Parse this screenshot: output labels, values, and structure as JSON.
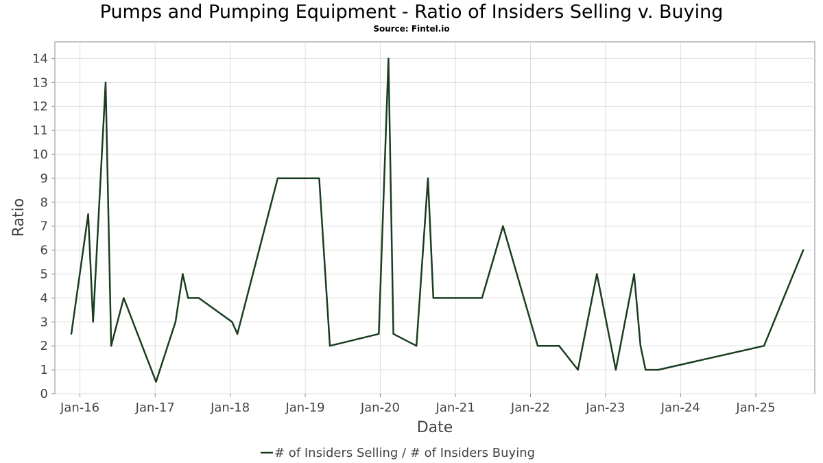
{
  "title": "Pumps and Pumping Equipment - Ratio of Insiders Selling v. Buying",
  "subtitle": "Source: Fintel.io",
  "chart_data": {
    "type": "line",
    "xlabel": "Date",
    "ylabel": "Ratio",
    "xlim": [
      "2015-09-01",
      "2025-10-15"
    ],
    "ylim": [
      0,
      14.7
    ],
    "y_ticks": [
      0,
      1,
      2,
      3,
      4,
      5,
      6,
      7,
      8,
      9,
      10,
      11,
      12,
      13,
      14
    ],
    "x_ticks": [
      {
        "date": "2016-01-01",
        "label": "Jan-16"
      },
      {
        "date": "2017-01-01",
        "label": "Jan-17"
      },
      {
        "date": "2018-01-01",
        "label": "Jan-18"
      },
      {
        "date": "2019-01-01",
        "label": "Jan-19"
      },
      {
        "date": "2020-01-01",
        "label": "Jan-20"
      },
      {
        "date": "2021-01-01",
        "label": "Jan-21"
      },
      {
        "date": "2022-01-01",
        "label": "Jan-22"
      },
      {
        "date": "2023-01-01",
        "label": "Jan-23"
      },
      {
        "date": "2024-01-01",
        "label": "Jan-24"
      },
      {
        "date": "2025-01-01",
        "label": "Jan-25"
      }
    ],
    "grid": true,
    "legend_position": "bottom-center",
    "series": [
      {
        "name": "# of Insiders Selling / # of Insiders Buying",
        "color": "#1a3d1f",
        "points": [
          {
            "x": "2015-11-20",
            "y": 2.5
          },
          {
            "x": "2016-02-10",
            "y": 7.5
          },
          {
            "x": "2016-03-05",
            "y": 3
          },
          {
            "x": "2016-05-05",
            "y": 13
          },
          {
            "x": "2016-06-01",
            "y": 2
          },
          {
            "x": "2016-08-01",
            "y": 4
          },
          {
            "x": "2017-01-05",
            "y": 0.5
          },
          {
            "x": "2017-04-10",
            "y": 3
          },
          {
            "x": "2017-05-15",
            "y": 5
          },
          {
            "x": "2017-06-10",
            "y": 4
          },
          {
            "x": "2017-08-01",
            "y": 4
          },
          {
            "x": "2018-01-10",
            "y": 3
          },
          {
            "x": "2018-02-05",
            "y": 2.5
          },
          {
            "x": "2018-08-20",
            "y": 9
          },
          {
            "x": "2019-03-10",
            "y": 9
          },
          {
            "x": "2019-05-01",
            "y": 2
          },
          {
            "x": "2019-12-25",
            "y": 2.5
          },
          {
            "x": "2020-02-10",
            "y": 14
          },
          {
            "x": "2020-03-05",
            "y": 2.5
          },
          {
            "x": "2020-06-25",
            "y": 2
          },
          {
            "x": "2020-08-20",
            "y": 9
          },
          {
            "x": "2020-09-15",
            "y": 4
          },
          {
            "x": "2021-05-10",
            "y": 4
          },
          {
            "x": "2021-08-20",
            "y": 7
          },
          {
            "x": "2022-02-05",
            "y": 2
          },
          {
            "x": "2022-05-20",
            "y": 2
          },
          {
            "x": "2022-08-20",
            "y": 1
          },
          {
            "x": "2022-11-20",
            "y": 5
          },
          {
            "x": "2023-02-20",
            "y": 1
          },
          {
            "x": "2023-05-20",
            "y": 5
          },
          {
            "x": "2023-06-20",
            "y": 2
          },
          {
            "x": "2023-07-15",
            "y": 1
          },
          {
            "x": "2023-09-15",
            "y": 1
          },
          {
            "x": "2025-02-10",
            "y": 2
          },
          {
            "x": "2025-08-20",
            "y": 6
          }
        ]
      }
    ]
  }
}
